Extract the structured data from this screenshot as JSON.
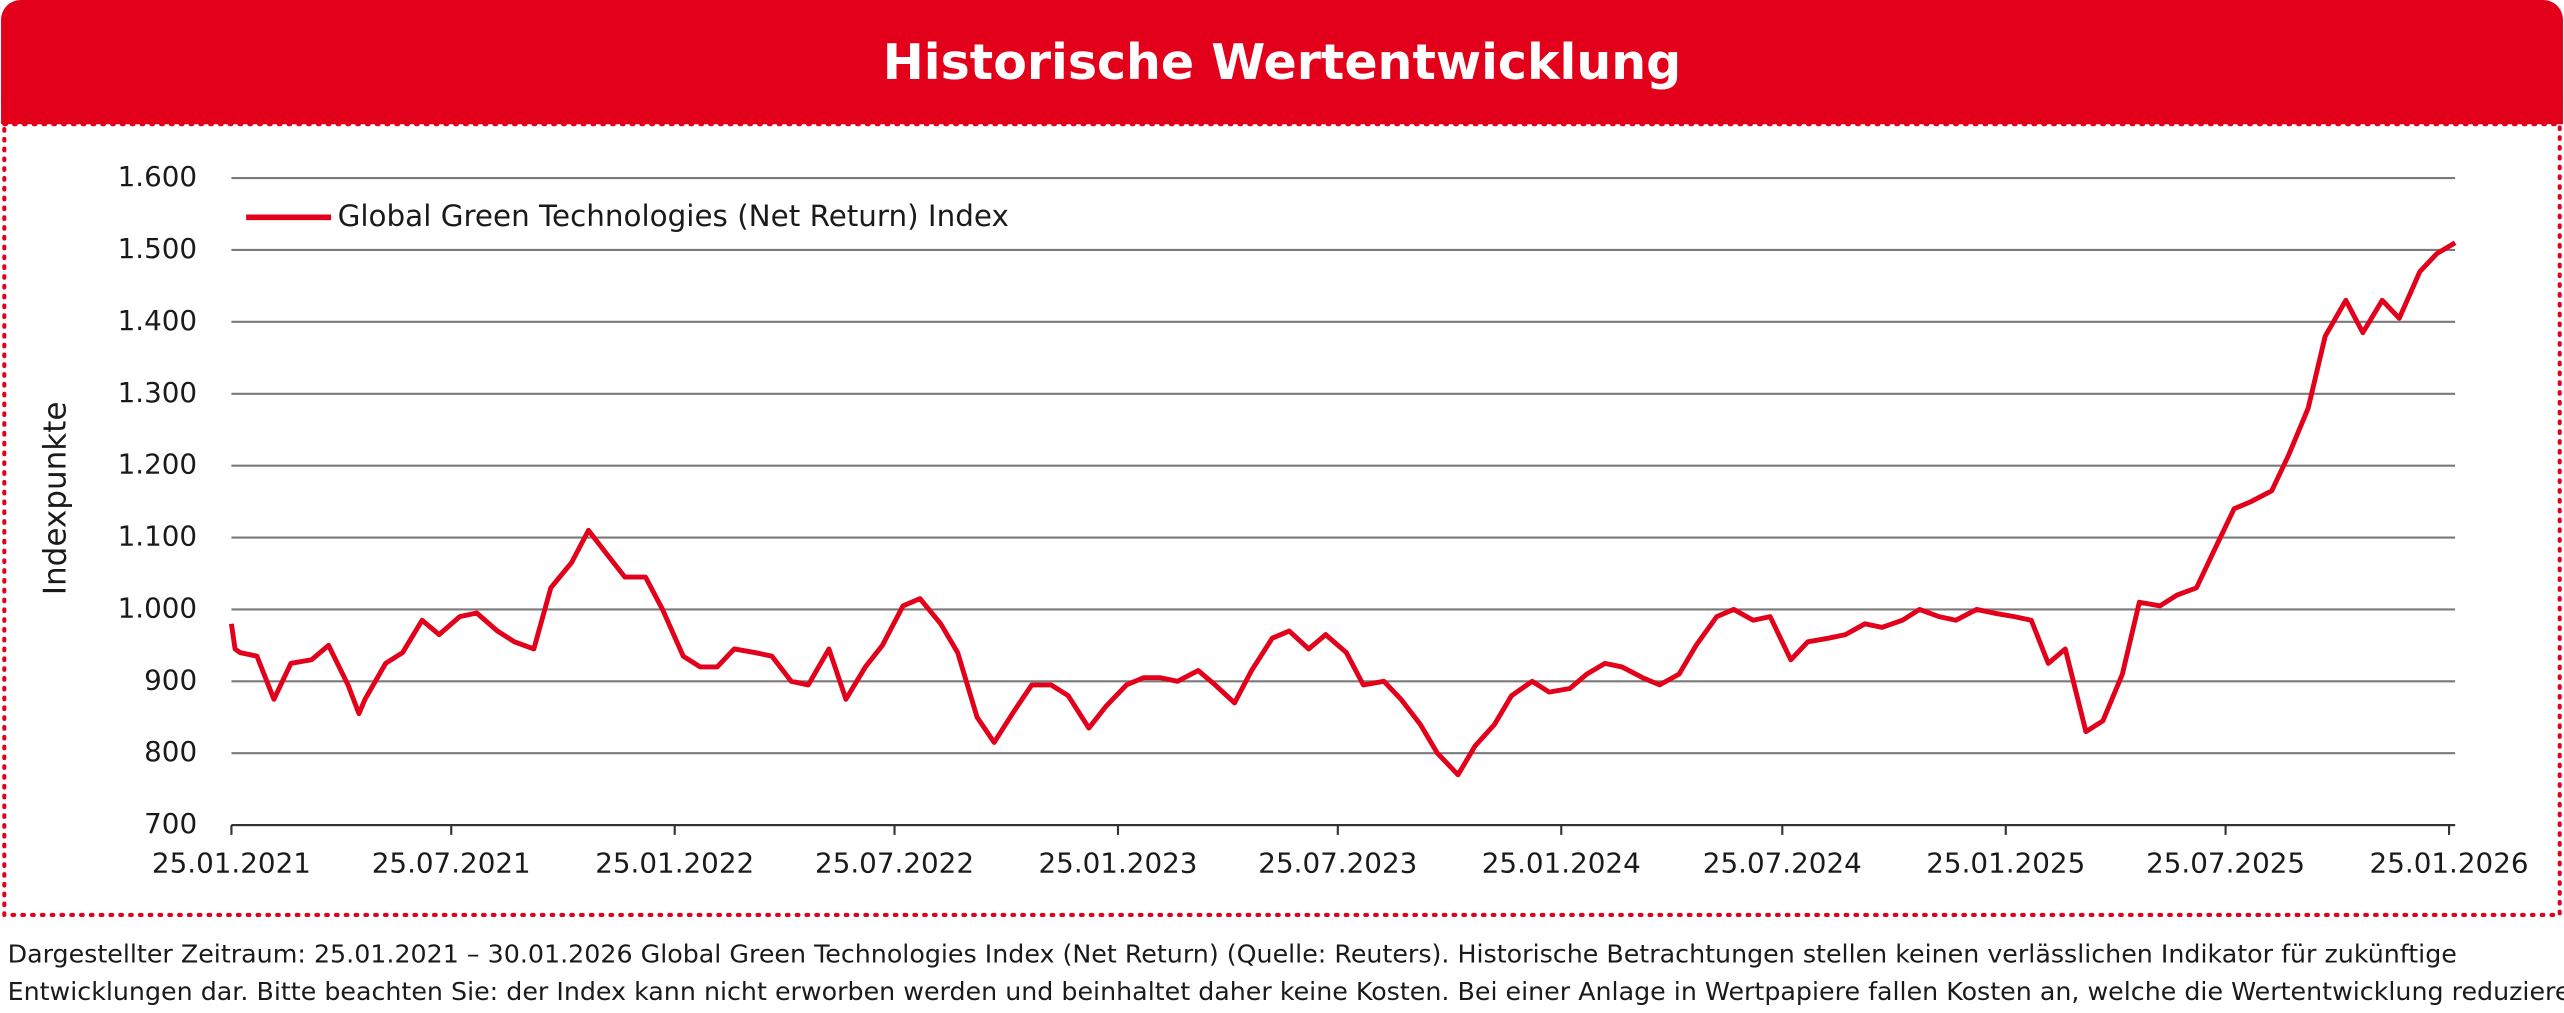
{
  "chart_data": {
    "type": "line",
    "title": "Historische Wertentwicklung",
    "ylabel": "Indexpunkte",
    "footnote": [
      "Dargestellter Zeitraum: 25.01.2021 – 30.01.2026 Global Green Technologies Index (Net Return) (Quelle: Reuters). Historische Betrachtungen stellen keinen verlässlichen Indikator für zukünftige",
      "Entwicklungen dar. Bitte beachten Sie: der Index kann nicht erworben werden und beinhaltet daher keine Kosten. Bei einer Anlage in Wertpapiere fallen Kosten an, welche die Wertentwicklung reduzieren."
    ],
    "legend": "upper left",
    "grid": true,
    "ylim": [
      700,
      1600
    ],
    "yticks": [
      700,
      800,
      900,
      {
        "value": 1000,
        "label": "1.000"
      },
      {
        "value": 1100,
        "label": "1.100"
      },
      {
        "value": 1200,
        "label": "1.200"
      },
      {
        "value": 1300,
        "label": "1.300"
      },
      {
        "value": 1400,
        "label": "1.400"
      },
      {
        "value": 1500,
        "label": "1.500"
      },
      {
        "value": 1600,
        "label": "1.600"
      }
    ],
    "xlim": [
      "25.01.2021",
      "30.01.2026"
    ],
    "xticks": [
      "25.01.2021",
      "25.07.2021",
      "25.01.2022",
      "25.07.2022",
      "25.01.2023",
      "25.07.2023",
      "25.01.2024",
      "25.07.2024",
      "25.01.2025",
      "25.07.2025",
      "25.01.2026"
    ],
    "x": [
      "25.01.2021",
      "28.01.2021",
      "01.02.2021",
      "15.02.2021",
      "01.03.2021",
      "15.03.2021",
      "01.04.2021",
      "15.04.2021",
      "01.05.2021",
      "10.05.2021",
      "15.05.2021",
      "01.06.2021",
      "15.06.2021",
      "01.07.2021",
      "15.07.2021",
      "01.08.2021",
      "15.08.2021",
      "01.09.2021",
      "15.09.2021",
      "01.10.2021",
      "15.10.2021",
      "01.11.2021",
      "15.11.2021",
      "01.12.2021",
      "15.12.2021",
      "01.01.2022",
      "15.01.2022",
      "01.02.2022",
      "15.02.2022",
      "01.03.2022",
      "15.03.2022",
      "01.04.2022",
      "15.04.2022",
      "01.05.2022",
      "15.05.2022",
      "01.06.2022",
      "15.06.2022",
      "01.07.2022",
      "15.07.2022",
      "01.08.2022",
      "15.08.2022",
      "01.09.2022",
      "15.09.2022",
      "01.10.2022",
      "15.10.2022",
      "01.11.2022",
      "15.11.2022",
      "01.12.2022",
      "15.12.2022",
      "01.01.2023",
      "15.01.2023",
      "01.02.2023",
      "15.02.2023",
      "01.03.2023",
      "15.03.2023",
      "01.04.2023",
      "15.04.2023",
      "01.05.2023",
      "15.05.2023",
      "01.06.2023",
      "15.06.2023",
      "01.07.2023",
      "15.07.2023",
      "01.08.2023",
      "15.08.2023",
      "01.09.2023",
      "15.09.2023",
      "01.10.2023",
      "15.10.2023",
      "01.11.2023",
      "15.11.2023",
      "01.12.2023",
      "15.12.2023",
      "01.01.2024",
      "15.01.2024",
      "01.02.2024",
      "15.02.2024",
      "01.03.2024",
      "15.03.2024",
      "01.04.2024",
      "15.04.2024",
      "01.05.2024",
      "15.05.2024",
      "01.06.2024",
      "15.06.2024",
      "01.07.2024",
      "15.07.2024",
      "01.08.2024",
      "15.08.2024",
      "01.09.2024",
      "15.09.2024",
      "01.10.2024",
      "15.10.2024",
      "01.11.2024",
      "15.11.2024",
      "01.12.2024",
      "15.12.2024",
      "01.01.2025",
      "15.01.2025",
      "01.02.2025",
      "15.02.2025",
      "01.03.2025",
      "15.03.2025",
      "01.04.2025",
      "15.04.2025",
      "01.05.2025",
      "15.05.2025",
      "01.06.2025",
      "15.06.2025",
      "01.07.2025",
      "15.07.2025",
      "01.08.2025",
      "15.08.2025",
      "01.09.2025",
      "15.09.2025",
      "01.10.2025",
      "15.10.2025",
      "01.11.2025",
      "15.11.2025",
      "01.12.2025",
      "15.12.2025",
      "01.01.2026",
      "15.01.2026",
      "30.01.2026"
    ],
    "series": [
      {
        "name": "Global Green Technologies (Net Return) Index",
        "color": "#e2001a",
        "values": [
          980,
          945,
          940,
          935,
          875,
          925,
          930,
          950,
          895,
          855,
          875,
          925,
          940,
          985,
          965,
          990,
          995,
          970,
          955,
          945,
          1030,
          1065,
          1110,
          1075,
          1045,
          1045,
          1000,
          935,
          920,
          920,
          945,
          940,
          935,
          900,
          895,
          945,
          875,
          920,
          950,
          1005,
          1015,
          980,
          940,
          850,
          815,
          860,
          895,
          895,
          880,
          835,
          865,
          895,
          905,
          905,
          900,
          915,
          895,
          870,
          915,
          960,
          970,
          945,
          965,
          940,
          895,
          900,
          875,
          840,
          800,
          770,
          810,
          840,
          880,
          900,
          885,
          890,
          910,
          925,
          920,
          905,
          895,
          910,
          950,
          990,
          1000,
          985,
          990,
          930,
          955,
          960,
          965,
          980,
          975,
          985,
          1000,
          990,
          985,
          1000,
          995,
          990,
          985,
          925,
          945,
          830,
          845,
          910,
          1010,
          1005,
          1020,
          1030,
          1080,
          1140,
          1150,
          1165,
          1215,
          1280,
          1380,
          1430,
          1385,
          1430,
          1405,
          1470,
          1495,
          1510
        ]
      }
    ]
  }
}
